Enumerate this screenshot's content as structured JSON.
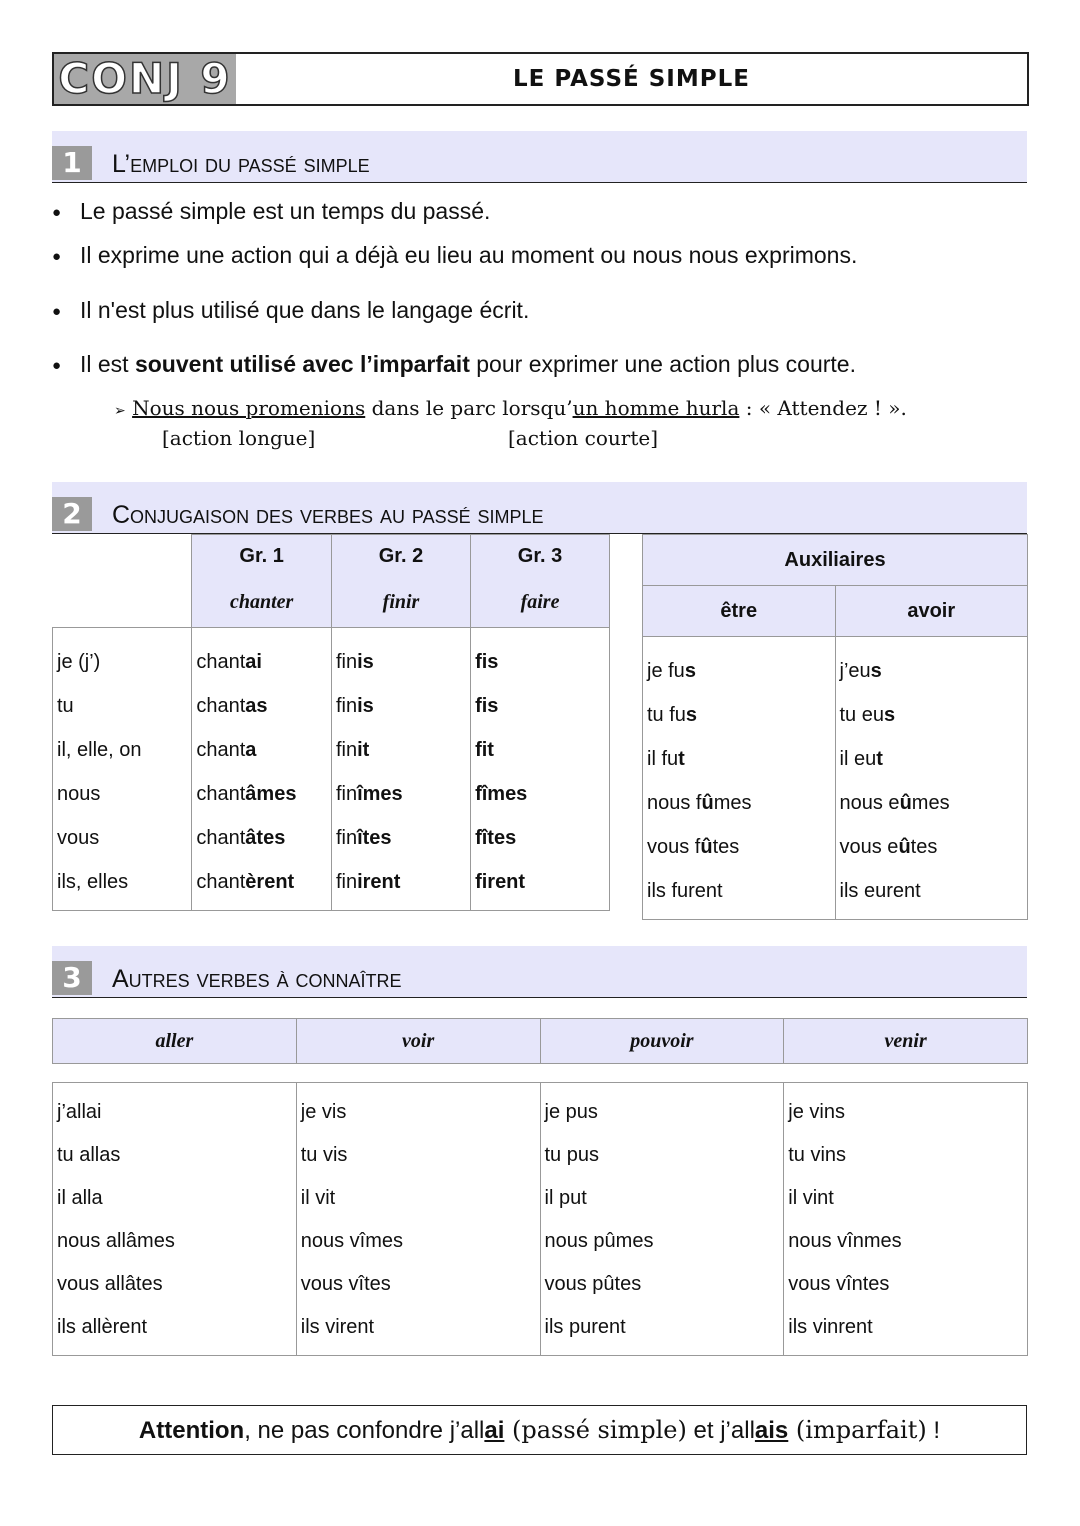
{
  "header": {
    "code": "CONJ 9",
    "title": "LE PASSÉ SIMPLE"
  },
  "section1": {
    "number": "1",
    "title": "L’emploi du passé simple",
    "bullets": [
      "Le passé simple est un temps du passé.",
      "Il exprime une action qui a déjà eu lieu au moment ou nous nous exprimons.",
      "Il n'est plus utilisé que dans le langage écrit."
    ],
    "bullet4": {
      "pre": "Il est ",
      "bold": "souvent utilisé avec l’imparfait",
      "post": " pour exprimer une action plus courte."
    },
    "example": {
      "arrow": "➢",
      "u1": "Nous nous promenions",
      "mid": " dans le parc lorsqu’",
      "u2": "un homme hurla",
      "end": " : « Attendez ! ».",
      "label1": "[action longue]",
      "label2": "[action courte]"
    }
  },
  "section2": {
    "number": "2",
    "title": "Conjugaison des verbes au passé simple",
    "groups": [
      {
        "label": "Gr. 1",
        "verb": "chanter"
      },
      {
        "label": "Gr. 2",
        "verb": "finir"
      },
      {
        "label": "Gr. 3",
        "verb": "faire"
      }
    ],
    "aux_title": "Auxiliaires",
    "aux": [
      "être",
      "avoir"
    ],
    "pronouns": [
      "je (j’)",
      "tu",
      "il, elle, on",
      "nous",
      "vous",
      "ils, elles"
    ],
    "columns": [
      [
        [
          "chant",
          "ai",
          ""
        ],
        [
          "chant",
          "as",
          ""
        ],
        [
          "chant",
          "a",
          ""
        ],
        [
          "chant",
          "âmes",
          ""
        ],
        [
          "chant",
          "âtes",
          ""
        ],
        [
          "chant",
          "èrent",
          ""
        ]
      ],
      [
        [
          "fin",
          "is",
          ""
        ],
        [
          "fin",
          "is",
          ""
        ],
        [
          "fin",
          "it",
          ""
        ],
        [
          "fin",
          "îmes",
          ""
        ],
        [
          "fin",
          "îtes",
          ""
        ],
        [
          "fin",
          "irent",
          ""
        ]
      ],
      [
        [
          "",
          "fis",
          ""
        ],
        [
          "",
          "fis",
          ""
        ],
        [
          "",
          "fit",
          ""
        ],
        [
          "",
          "fîmes",
          ""
        ],
        [
          "",
          "fîtes",
          ""
        ],
        [
          "",
          "firent",
          ""
        ]
      ],
      [
        [
          "je fu",
          "s",
          ""
        ],
        [
          "tu fu",
          "s",
          ""
        ],
        [
          "il fu",
          "t",
          ""
        ],
        [
          "nous f",
          "û",
          "mes"
        ],
        [
          "vous f",
          "û",
          "tes"
        ],
        [
          "ils furent",
          "",
          ""
        ]
      ],
      [
        [
          "j’eu",
          "s",
          ""
        ],
        [
          "tu eu",
          "s",
          ""
        ],
        [
          "il eu",
          "t",
          ""
        ],
        [
          "nous e",
          "û",
          "mes"
        ],
        [
          "vous e",
          "û",
          "tes"
        ],
        [
          "ils eurent",
          "",
          ""
        ]
      ]
    ]
  },
  "section3": {
    "number": "3",
    "title": "Autres verbes à connaître",
    "verbs": [
      "aller",
      "voir",
      "pouvoir",
      "venir"
    ],
    "forms": [
      [
        "j’allai",
        "tu allas",
        "il alla",
        "nous allâmes",
        "vous allâtes",
        "ils allèrent"
      ],
      [
        "je vis",
        "tu vis",
        "il vit",
        "nous vîmes",
        "vous vîtes",
        "ils virent"
      ],
      [
        "je pus",
        "tu pus",
        "il put",
        "nous pûmes",
        "vous pûtes",
        "ils purent"
      ],
      [
        "je vins",
        "tu vins",
        "il vint",
        "nous vînmes",
        "vous vîntes",
        "ils vinrent"
      ]
    ]
  },
  "attention": {
    "bold": "Attention",
    "t1": ", ne pas confondre j’all",
    "u1": "ai",
    "s1": " (passé simple)",
    "t2": " et j’all",
    "u2": "ais",
    "s2": " (imparfait)",
    "t3": " !"
  }
}
